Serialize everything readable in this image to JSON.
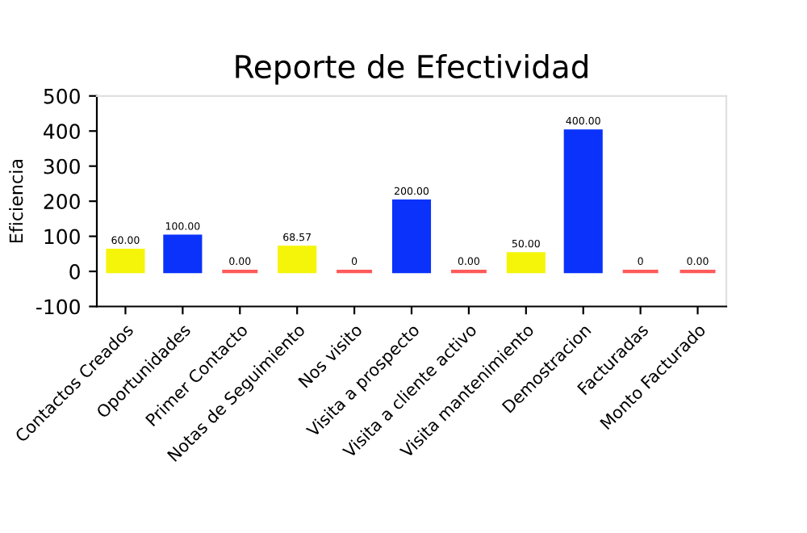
{
  "chart_data": {
    "type": "bar",
    "title": "Reporte de Efectividad",
    "ylabel": "Eficiencia",
    "categories": [
      "Contactos Creados",
      "Oportunidades",
      "Primer Contacto",
      "Notas de Seguimiento",
      "Nos visito",
      "Visita a prospecto",
      "Visita a cliente activo",
      "Visita mantenimiento",
      "Demostracion",
      "Facturadas",
      "Monto Facturado"
    ],
    "values": [
      60,
      100,
      0,
      68.57,
      0,
      200,
      0,
      50,
      400,
      0,
      0
    ],
    "colors": [
      "#f5f50a",
      "#0a32fa",
      "#ff5a5a",
      "#f5f50a",
      "#ff5a5a",
      "#0a32fa",
      "#ff5a5a",
      "#f5f50a",
      "#0a32fa",
      "#ff5a5a",
      "#ff5a5a"
    ],
    "value_labels": [
      "60.00",
      "100.00",
      "0.00",
      "68.57",
      "0",
      "200.00",
      "0.00",
      "50.00",
      "400.00",
      "0",
      "0.00"
    ],
    "ylim": [
      -100,
      500
    ],
    "yticks": [
      -100,
      0,
      100,
      200,
      300,
      400,
      500
    ],
    "grid": false,
    "legend": false
  }
}
